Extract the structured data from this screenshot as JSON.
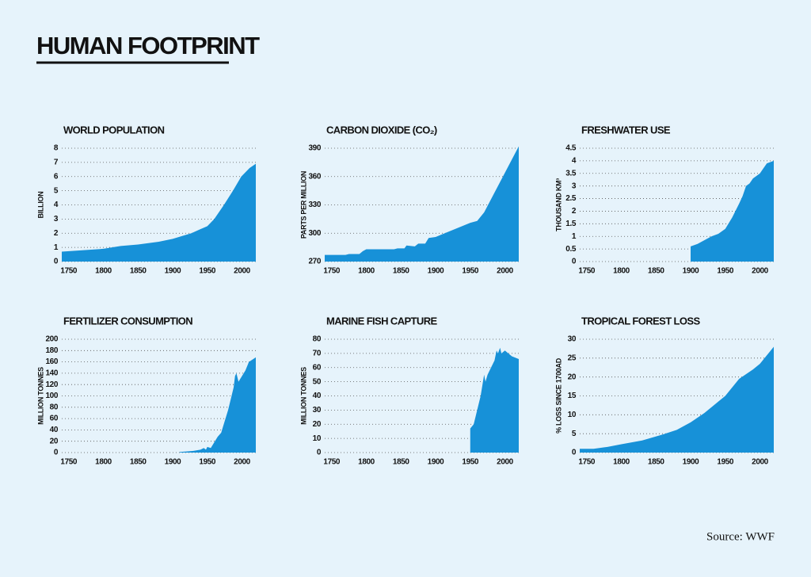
{
  "title": "HUMAN FOOTPRINT",
  "source": "Source: WWF",
  "chart_data": [
    {
      "type": "area",
      "title": "WORLD POPULATION",
      "y_label": "BILLION",
      "color": "#1791d8",
      "grid": true,
      "x": [
        1740,
        1800,
        1825,
        1850,
        1880,
        1900,
        1927,
        1950,
        1960,
        1974,
        1987,
        1999,
        2011,
        2020
      ],
      "values": [
        0.7,
        0.9,
        1.1,
        1.2,
        1.4,
        1.6,
        2.0,
        2.5,
        3.0,
        4.0,
        5.0,
        6.0,
        6.6,
        6.9
      ],
      "xlim": [
        1740,
        2020
      ],
      "xticks": [
        1750,
        1800,
        1850,
        1900,
        1950,
        2000
      ],
      "ylim": [
        0,
        8
      ],
      "yticks": [
        0,
        1,
        2,
        3,
        4,
        5,
        6,
        7,
        8
      ]
    },
    {
      "type": "area",
      "title": "CARBON DIOXIDE (CO₂)",
      "y_label": "PARTS PER MILLION",
      "color": "#1791d8",
      "grid": true,
      "x": [
        1740,
        1770,
        1775,
        1790,
        1795,
        1800,
        1840,
        1845,
        1855,
        1858,
        1870,
        1875,
        1885,
        1890,
        1900,
        1950,
        1960,
        1970,
        2020
      ],
      "values": [
        277,
        277,
        278,
        278,
        281,
        283,
        283,
        284,
        284,
        287,
        286,
        289,
        289,
        295,
        296,
        311,
        313,
        322,
        392
      ],
      "xlim": [
        1740,
        2020
      ],
      "xticks": [
        1750,
        1800,
        1850,
        1900,
        1950,
        2000
      ],
      "ylim": [
        270,
        390
      ],
      "yticks": [
        270,
        300,
        330,
        360,
        390
      ]
    },
    {
      "type": "area",
      "title": "FRESHWATER USE",
      "y_label": "THOUSAND KM³",
      "color": "#1791d8",
      "grid": true,
      "x": [
        1900,
        1910,
        1920,
        1930,
        1940,
        1950,
        1960,
        1970,
        1975,
        1980,
        1985,
        1990,
        1995,
        2000,
        2005,
        2010,
        2020
      ],
      "values": [
        0.6,
        0.7,
        0.85,
        1.0,
        1.1,
        1.3,
        1.75,
        2.3,
        2.6,
        3.0,
        3.1,
        3.3,
        3.4,
        3.5,
        3.7,
        3.9,
        4.0
      ],
      "xlim": [
        1740,
        2020
      ],
      "xticks": [
        1750,
        1800,
        1850,
        1900,
        1950,
        2000
      ],
      "ylim": [
        0,
        4.5
      ],
      "yticks": [
        0,
        0.5,
        1,
        1.5,
        2,
        2.5,
        3,
        3.5,
        4,
        4.5
      ]
    },
    {
      "type": "area",
      "title": "FERTILIZER CONSUMPTION",
      "y_label": "MILLION TONNES",
      "color": "#1791d8",
      "grid": true,
      "x": [
        1910,
        1920,
        1930,
        1940,
        1945,
        1948,
        1950,
        1955,
        1960,
        1965,
        1970,
        1975,
        1980,
        1982,
        1985,
        1988,
        1990,
        1992,
        1995,
        2000,
        2005,
        2010,
        2020
      ],
      "values": [
        1,
        2,
        3,
        5,
        8,
        5,
        10,
        8,
        18,
        28,
        35,
        55,
        75,
        85,
        100,
        115,
        135,
        140,
        125,
        135,
        145,
        160,
        168
      ],
      "xlim": [
        1740,
        2020
      ],
      "xticks": [
        1750,
        1800,
        1850,
        1900,
        1950,
        2000
      ],
      "ylim": [
        0,
        200
      ],
      "yticks": [
        0,
        20,
        40,
        60,
        80,
        100,
        120,
        140,
        160,
        180,
        200
      ]
    },
    {
      "type": "area",
      "title": "MARINE FISH CAPTURE",
      "y_label": "MILLION TONNES",
      "color": "#1791d8",
      "grid": true,
      "x": [
        1950,
        1955,
        1960,
        1965,
        1970,
        1972,
        1975,
        1980,
        1985,
        1988,
        1990,
        1993,
        1995,
        2000,
        2005,
        2010,
        2020
      ],
      "values": [
        17,
        20,
        30,
        40,
        55,
        50,
        55,
        60,
        65,
        72,
        70,
        74,
        70,
        72,
        70,
        68,
        66
      ],
      "xlim": [
        1740,
        2020
      ],
      "xticks": [
        1750,
        1800,
        1850,
        1900,
        1950,
        2000
      ],
      "ylim": [
        0,
        80
      ],
      "yticks": [
        0,
        10,
        20,
        30,
        40,
        50,
        60,
        70,
        80
      ]
    },
    {
      "type": "area",
      "title": "TROPICAL FOREST LOSS",
      "y_label": "% LOSS SINCE 1700AD",
      "color": "#1791d8",
      "grid": true,
      "x": [
        1740,
        1760,
        1780,
        1800,
        1830,
        1860,
        1880,
        1900,
        1920,
        1940,
        1950,
        1970,
        1990,
        2000,
        2020
      ],
      "values": [
        1,
        1,
        1.5,
        2.2,
        3.2,
        4.8,
        6,
        8,
        10.5,
        13.5,
        15,
        19.5,
        22,
        23.5,
        28
      ],
      "xlim": [
        1740,
        2020
      ],
      "xticks": [
        1750,
        1800,
        1850,
        1900,
        1950,
        2000
      ],
      "ylim": [
        0,
        30
      ],
      "yticks": [
        0,
        5,
        10,
        15,
        20,
        25,
        30
      ]
    }
  ]
}
